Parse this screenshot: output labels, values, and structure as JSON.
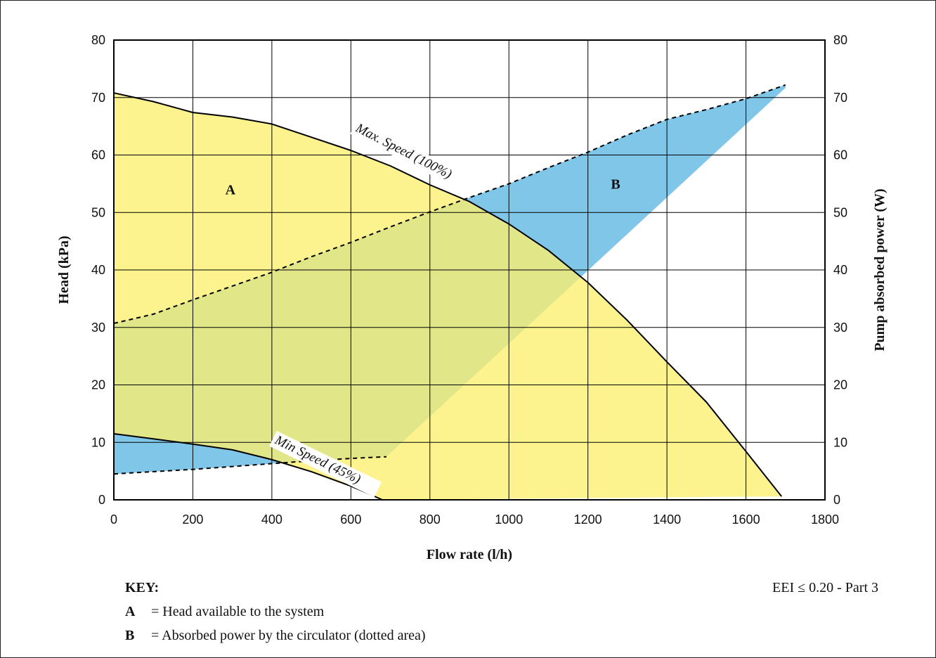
{
  "chart_data": {
    "type": "area",
    "xlabel": "Flow rate (l/h)",
    "ylabel_left": "Head (kPa)",
    "ylabel_right": "Pump absorbed power (W)",
    "xlim": [
      0,
      1800
    ],
    "ylim_left": [
      0,
      80
    ],
    "ylim_right": [
      0,
      80
    ],
    "x_ticks": [
      "0",
      "200",
      "400",
      "600",
      "800",
      "1000",
      "1200",
      "1400",
      "1600",
      "1800"
    ],
    "y_ticks_left": [
      "0",
      "10",
      "20",
      "30",
      "40",
      "50",
      "60",
      "70",
      "80"
    ],
    "y_ticks_right": [
      "0",
      "10",
      "20",
      "30",
      "40",
      "50",
      "60",
      "70",
      "80"
    ],
    "grid": true,
    "areas": [
      {
        "label": "A",
        "label_pos": {
          "x": 295,
          "y": 54
        },
        "color": "#fcf06e"
      },
      {
        "label": "B",
        "label_pos": {
          "x": 1270,
          "y": 55
        },
        "color": "#7fc6e8"
      }
    ],
    "series": [
      {
        "name": "Max. Speed (100%)",
        "style": "solid",
        "axis": "left",
        "x": [
          0,
          100,
          200,
          300,
          400,
          500,
          600,
          700,
          800,
          900,
          1000,
          1100,
          1200,
          1300,
          1400,
          1500,
          1600,
          1690
        ],
        "y": [
          70.8,
          69.3,
          67.4,
          66.6,
          65.4,
          63.1,
          60.8,
          58.1,
          54.8,
          51.9,
          48.0,
          43.4,
          37.8,
          31.2,
          24.0,
          17.0,
          8.4,
          0.6
        ]
      },
      {
        "name": "Min Speed (45%)",
        "style": "solid",
        "axis": "left",
        "x": [
          0,
          100,
          200,
          300,
          400,
          500,
          600,
          680
        ],
        "y": [
          11.5,
          10.6,
          9.7,
          8.7,
          7.0,
          4.9,
          2.4,
          0
        ]
      },
      {
        "name": "",
        "style": "dashed",
        "axis": "right",
        "x": [
          0,
          100,
          200,
          300,
          400,
          500,
          600,
          700,
          800,
          900,
          1000,
          1100,
          1200,
          1300,
          1400,
          1500,
          1600,
          1700
        ],
        "y": [
          30.7,
          32.3,
          34.8,
          37.2,
          39.6,
          42.3,
          44.8,
          47.5,
          50.1,
          52.6,
          55.0,
          57.8,
          60.5,
          63.5,
          66.2,
          67.9,
          69.8,
          72.2
        ]
      },
      {
        "name": "",
        "style": "dashed",
        "axis": "right",
        "x": [
          0,
          100,
          200,
          300,
          400,
          500,
          600,
          690
        ],
        "y": [
          4.5,
          4.9,
          5.3,
          5.8,
          6.3,
          6.8,
          7.2,
          7.5
        ]
      }
    ],
    "annotations": {
      "eei": "EEI ≤ 0.20 - Part 3"
    }
  },
  "key": {
    "title": "KEY:",
    "items": [
      {
        "letter": "A",
        "text": "= Head available to the system"
      },
      {
        "letter": "B",
        "text": "= Absorbed power by the circulator (dotted area)"
      }
    ]
  }
}
